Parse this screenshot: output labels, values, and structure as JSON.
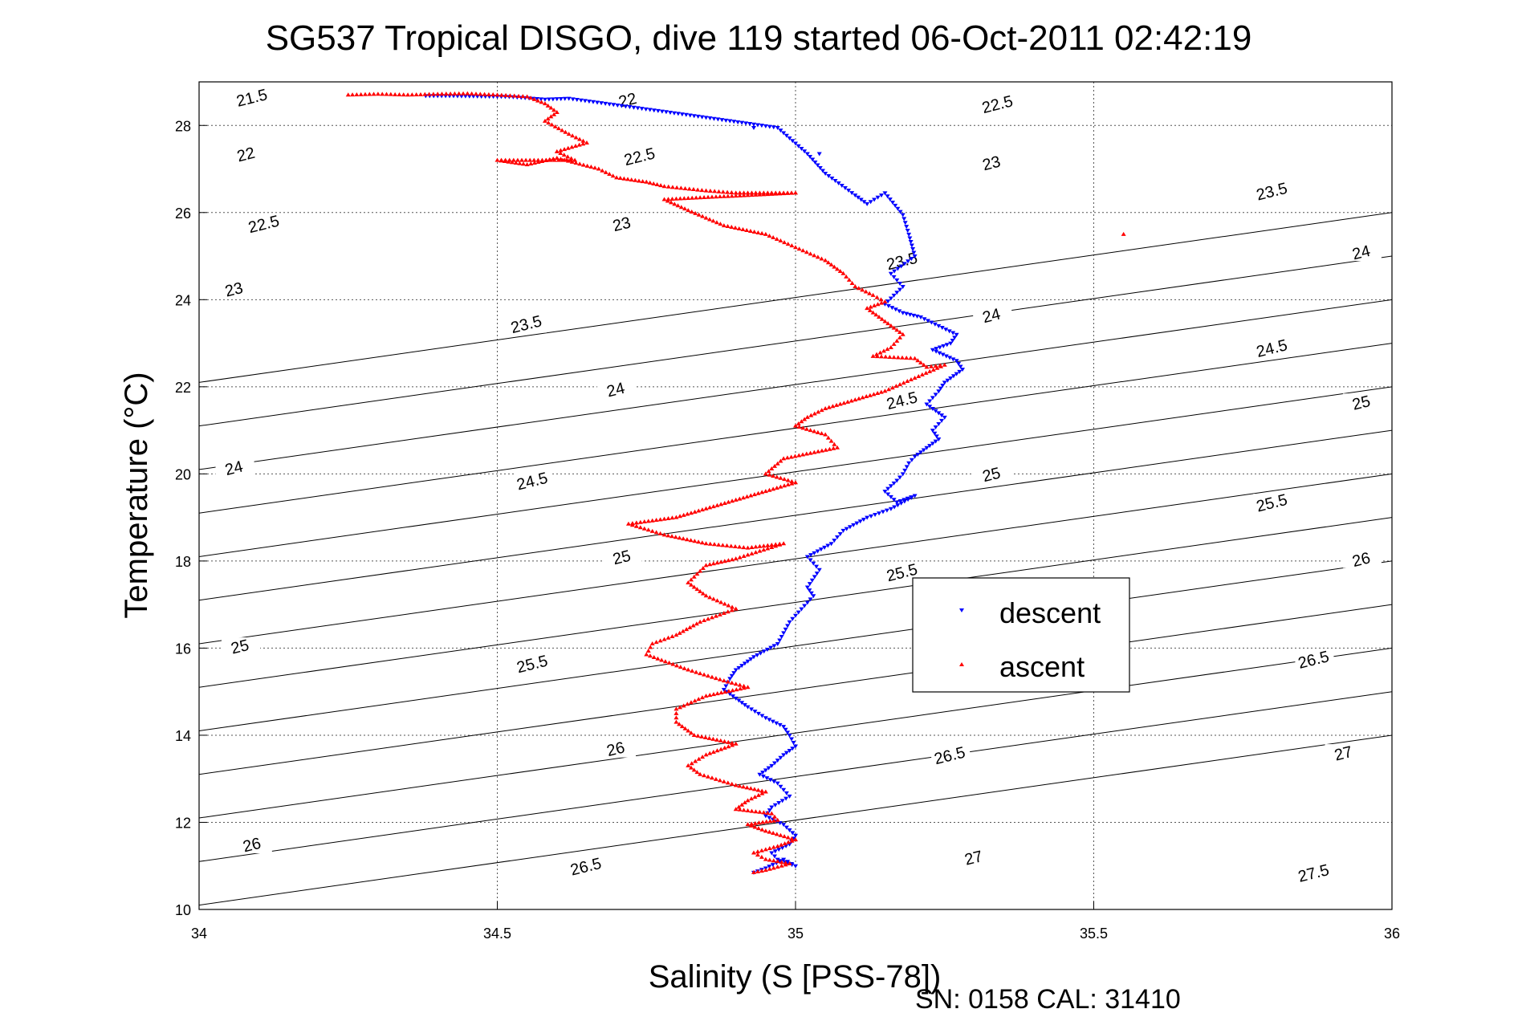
{
  "chart_data": {
    "type": "scatter",
    "title": "SG537 Tropical DISGO, dive 119 started 06-Oct-2011 02:42:19",
    "xlabel": "Salinity (S [PSS-78])",
    "ylabel": "Temperature (°C)",
    "xlim": [
      34,
      36
    ],
    "ylim": [
      10,
      29
    ],
    "x_ticks": [
      "34",
      "34.5",
      "35",
      "35.5",
      "36"
    ],
    "y_ticks": [
      "10",
      "12",
      "14",
      "16",
      "18",
      "20",
      "22",
      "24",
      "26",
      "28"
    ],
    "grid": true,
    "legend_position": "center-right",
    "footer": "SN: 0158  CAL: 31410",
    "density_contours": {
      "levels": [
        21.5,
        22,
        22.5,
        23,
        23.5,
        24,
        24.5,
        25,
        25.5,
        26,
        26.5,
        27,
        27.5
      ],
      "labels": [
        {
          "text": "21.5",
          "x": 34.09,
          "y": 28.55
        },
        {
          "text": "22",
          "x": 34.72,
          "y": 28.5
        },
        {
          "text": "22.5",
          "x": 35.34,
          "y": 28.4
        },
        {
          "text": "22",
          "x": 34.08,
          "y": 27.25
        },
        {
          "text": "22.5",
          "x": 34.74,
          "y": 27.2
        },
        {
          "text": "23",
          "x": 35.33,
          "y": 27.05
        },
        {
          "text": "23.5",
          "x": 35.8,
          "y": 26.4
        },
        {
          "text": "22.5",
          "x": 34.11,
          "y": 25.65
        },
        {
          "text": "23",
          "x": 34.71,
          "y": 25.65
        },
        {
          "text": "23.5",
          "x": 35.18,
          "y": 24.8
        },
        {
          "text": "24",
          "x": 35.95,
          "y": 25.0
        },
        {
          "text": "23",
          "x": 34.06,
          "y": 24.15
        },
        {
          "text": "23.5",
          "x": 34.55,
          "y": 23.35
        },
        {
          "text": "24",
          "x": 35.33,
          "y": 23.55
        },
        {
          "text": "24.5",
          "x": 35.8,
          "y": 22.8
        },
        {
          "text": "24",
          "x": 34.7,
          "y": 21.85
        },
        {
          "text": "24.5",
          "x": 35.18,
          "y": 21.6
        },
        {
          "text": "25",
          "x": 35.95,
          "y": 21.55
        },
        {
          "text": "24",
          "x": 34.06,
          "y": 20.05
        },
        {
          "text": "24.5",
          "x": 34.56,
          "y": 19.75
        },
        {
          "text": "25",
          "x": 35.33,
          "y": 19.9
        },
        {
          "text": "25.5",
          "x": 35.8,
          "y": 19.25
        },
        {
          "text": "25",
          "x": 34.71,
          "y": 18.0
        },
        {
          "text": "25.5",
          "x": 35.18,
          "y": 17.65
        },
        {
          "text": "26",
          "x": 35.95,
          "y": 17.95
        },
        {
          "text": "25",
          "x": 34.07,
          "y": 15.95
        },
        {
          "text": "25.5",
          "x": 34.56,
          "y": 15.55
        },
        {
          "text": "26",
          "x": 35.43,
          "y": 16.7
        },
        {
          "text": "26.5",
          "x": 35.87,
          "y": 15.65
        },
        {
          "text": "26",
          "x": 34.7,
          "y": 13.6
        },
        {
          "text": "26.5",
          "x": 35.26,
          "y": 13.45
        },
        {
          "text": "27",
          "x": 35.92,
          "y": 13.5
        },
        {
          "text": "26",
          "x": 34.09,
          "y": 11.4
        },
        {
          "text": "26.5",
          "x": 34.65,
          "y": 10.9
        },
        {
          "text": "27",
          "x": 35.3,
          "y": 11.1
        },
        {
          "text": "27.5",
          "x": 35.87,
          "y": 10.75
        }
      ]
    },
    "series": [
      {
        "name": "descent",
        "color": "#0000ff",
        "marker": "triangle-down",
        "x": [
          34.38,
          34.42,
          34.52,
          34.58,
          34.62,
          34.79,
          34.97,
          35.02,
          35.05,
          35.1,
          35.12,
          35.15,
          35.18,
          35.19,
          35.2,
          35.16,
          35.18,
          35.15,
          35.18,
          35.21,
          35.24,
          35.27,
          35.26,
          35.23,
          35.27,
          35.28,
          35.25,
          35.24,
          35.22,
          35.25,
          35.23,
          35.24,
          35.22,
          35.2,
          35.19,
          35.18,
          35.17,
          35.15,
          35.17,
          35.2,
          35.16,
          35.12,
          35.08,
          35.06,
          35.02,
          35.04,
          35.02,
          35.03,
          35.01,
          34.99,
          34.98,
          34.97,
          34.93,
          34.9,
          34.89,
          34.88,
          34.9,
          34.92,
          34.95,
          34.98,
          34.99,
          35.0,
          34.98,
          34.96,
          34.94,
          34.97,
          34.99,
          34.96,
          34.95,
          34.98,
          35.0,
          34.99,
          34.96,
          34.97,
          35.0,
          34.98,
          34.95,
          34.93
        ],
        "y": [
          28.68,
          28.68,
          28.66,
          28.6,
          28.62,
          28.3,
          27.95,
          27.35,
          26.9,
          26.4,
          26.2,
          26.45,
          25.95,
          25.5,
          25.0,
          24.6,
          24.3,
          23.9,
          23.7,
          23.6,
          23.4,
          23.2,
          23.0,
          22.85,
          22.6,
          22.4,
          22.1,
          21.9,
          21.6,
          21.3,
          21.0,
          20.8,
          20.6,
          20.4,
          20.25,
          20.0,
          19.85,
          19.6,
          19.35,
          19.5,
          19.2,
          19.0,
          18.7,
          18.4,
          18.1,
          17.8,
          17.4,
          17.2,
          16.9,
          16.6,
          16.35,
          16.1,
          15.8,
          15.5,
          15.3,
          15.05,
          14.85,
          14.65,
          14.4,
          14.2,
          14.0,
          13.75,
          13.55,
          13.3,
          13.1,
          12.9,
          12.6,
          12.35,
          12.15,
          11.95,
          11.7,
          11.5,
          11.3,
          11.15,
          11.0,
          11.15,
          10.95,
          10.85
        ]
      },
      {
        "name": "ascent",
        "color": "#ff0000",
        "marker": "triangle-up",
        "x": [
          34.25,
          34.3,
          34.35,
          34.4,
          34.45,
          34.5,
          34.55,
          34.58,
          34.6,
          34.58,
          34.62,
          34.65,
          34.6,
          34.63,
          34.5,
          34.55,
          34.6,
          34.67,
          34.7,
          34.75,
          34.78,
          34.85,
          34.9,
          35.0,
          34.78,
          34.82,
          34.88,
          34.95,
          35.0,
          35.05,
          35.08,
          35.1,
          35.13,
          35.15,
          35.12,
          35.15,
          35.18,
          35.16,
          35.13,
          35.2,
          35.22,
          35.25,
          35.2,
          35.15,
          35.1,
          35.05,
          35.02,
          35.0,
          35.05,
          35.07,
          34.98,
          34.95,
          35.0,
          34.95,
          34.9,
          34.85,
          34.8,
          34.72,
          34.78,
          34.85,
          34.92,
          34.98,
          34.9,
          34.85,
          34.82,
          34.85,
          34.9,
          34.84,
          34.8,
          34.76,
          34.75,
          34.82,
          34.88,
          34.92,
          34.85,
          34.8,
          34.8,
          34.83,
          34.9,
          34.85,
          34.82,
          34.84,
          34.9,
          34.95,
          34.92,
          34.9,
          34.96,
          34.97,
          34.92,
          34.95,
          35.0,
          34.97,
          34.93,
          34.95,
          34.99,
          34.95,
          34.93
        ],
        "y": [
          28.7,
          28.72,
          28.7,
          28.72,
          28.73,
          28.7,
          28.66,
          28.5,
          28.3,
          28.1,
          27.8,
          27.6,
          27.4,
          27.2,
          27.2,
          27.1,
          27.25,
          27.0,
          26.8,
          26.7,
          26.6,
          26.5,
          26.45,
          26.45,
          26.3,
          26.05,
          25.7,
          25.5,
          25.2,
          24.9,
          24.6,
          24.3,
          24.1,
          23.95,
          23.8,
          23.5,
          23.2,
          22.9,
          22.7,
          22.65,
          22.45,
          22.5,
          22.2,
          21.9,
          21.7,
          21.5,
          21.3,
          21.1,
          20.9,
          20.6,
          20.35,
          20.0,
          19.8,
          19.6,
          19.4,
          19.2,
          19.0,
          18.85,
          18.6,
          18.4,
          18.3,
          18.4,
          18.05,
          17.9,
          17.5,
          17.2,
          16.9,
          16.6,
          16.3,
          16.1,
          15.85,
          15.5,
          15.25,
          15.1,
          14.9,
          14.6,
          14.3,
          14.0,
          13.8,
          13.55,
          13.3,
          13.1,
          12.85,
          12.7,
          12.5,
          12.3,
          12.2,
          12.05,
          11.95,
          11.8,
          11.6,
          11.45,
          11.3,
          11.15,
          11.05,
          10.9,
          10.85
        ]
      }
    ],
    "outliers": [
      {
        "series": "descent",
        "x": 34.93,
        "y": 27.95
      },
      {
        "series": "descent",
        "x": 35.04,
        "y": 27.35
      },
      {
        "series": "ascent",
        "x": 35.55,
        "y": 25.5
      }
    ]
  }
}
